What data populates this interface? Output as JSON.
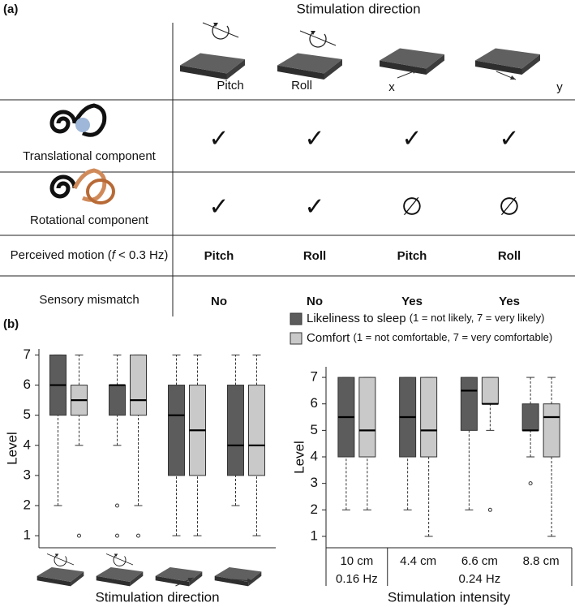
{
  "panel_a": {
    "label": "(a)",
    "header": "Stimulation direction",
    "columns": [
      "Pitch",
      "Roll",
      "x",
      "y"
    ],
    "rows": [
      {
        "label": "Translational component",
        "cells": [
          "✓",
          "✓",
          "✓",
          "✓"
        ]
      },
      {
        "label": "Rotational component",
        "cells": [
          "✓",
          "✓",
          "∅",
          "∅"
        ]
      },
      {
        "label_parts": [
          "Perceived motion (",
          "f",
          " < 0.3 Hz)"
        ],
        "cells": [
          "Pitch",
          "Roll",
          "Pitch",
          "Roll"
        ]
      },
      {
        "label": "Sensory mismatch",
        "cells": [
          "No",
          "No",
          "Yes",
          "Yes"
        ]
      }
    ]
  },
  "panel_b": {
    "label": "(b)"
  },
  "chart_data": [
    {
      "type": "box",
      "x_label": "Stimulation direction",
      "y_label": "Level",
      "categories": [
        null,
        null,
        null,
        null
      ],
      "ylim": [
        0.6,
        7.2
      ],
      "yticks": [
        1,
        2,
        3,
        4,
        5,
        6,
        7
      ],
      "series": [
        {
          "color": "#5c5c5c",
          "values": [
            {
              "min": 2,
              "q1": 5,
              "median": 6,
              "q3": 7,
              "max": 7,
              "outliers": []
            },
            {
              "min": 4,
              "q1": 5,
              "median": 6,
              "q3": 6,
              "max": 7,
              "outliers": [
                2,
                1
              ]
            },
            {
              "min": 1,
              "q1": 3,
              "median": 5,
              "q3": 6,
              "max": 7,
              "outliers": []
            },
            {
              "min": 2,
              "q1": 3,
              "median": 4,
              "q3": 6,
              "max": 7,
              "outliers": []
            }
          ]
        },
        {
          "color": "#c9c9c9",
          "values": [
            {
              "min": 4,
              "q1": 5,
              "median": 5.5,
              "q3": 6,
              "max": 7,
              "outliers": [
                1
              ]
            },
            {
              "min": 2,
              "q1": 5,
              "median": 5.5,
              "q3": 7,
              "max": 7,
              "outliers": [
                1
              ]
            },
            {
              "min": 1,
              "q1": 3,
              "median": 4.5,
              "q3": 6,
              "max": 7,
              "outliers": []
            },
            {
              "min": 1,
              "q1": 3,
              "median": 4,
              "q3": 6,
              "max": 7,
              "outliers": []
            }
          ]
        }
      ]
    },
    {
      "type": "box",
      "x_label": "Stimulation intensity",
      "y_label": "Level",
      "categories": [
        "10 cm",
        "4.4 cm",
        "6.6 cm",
        "8.8 cm"
      ],
      "frequency_labels": [
        "0.16 Hz",
        "0.24 Hz"
      ],
      "ylim": [
        0.57,
        7.4
      ],
      "yticks": [
        1,
        2,
        3,
        4,
        5,
        6,
        7
      ],
      "series": [
        {
          "name": "Likeliness to sleep",
          "note": "(1 = not likely, 7 = very likely)",
          "color": "#5c5c5c",
          "values": [
            {
              "min": 2,
              "q1": 4,
              "median": 5.5,
              "q3": 7,
              "max": 7,
              "outliers": []
            },
            {
              "min": 2,
              "q1": 4,
              "median": 5.5,
              "q3": 7,
              "max": 7,
              "outliers": []
            },
            {
              "min": 2,
              "q1": 5,
              "median": 6.5,
              "q3": 7,
              "max": 7,
              "outliers": []
            },
            {
              "min": 4,
              "q1": 5,
              "median": 5,
              "q3": 6,
              "max": 7,
              "outliers": [
                3
              ]
            }
          ]
        },
        {
          "name": "Comfort",
          "note": "(1 = not comfortable, 7 = very comfortable)",
          "color": "#c9c9c9",
          "values": [
            {
              "min": 2,
              "q1": 4,
              "median": 5,
              "q3": 7,
              "max": 7,
              "outliers": []
            },
            {
              "min": 1,
              "q1": 4,
              "median": 5,
              "q3": 7,
              "max": 7,
              "outliers": []
            },
            {
              "min": 5,
              "q1": 6,
              "median": 6,
              "q3": 7,
              "max": 7,
              "outliers": [
                2
              ]
            },
            {
              "min": 1,
              "q1": 4,
              "median": 5.5,
              "q3": 6,
              "max": 7,
              "outliers": []
            }
          ]
        }
      ]
    }
  ]
}
